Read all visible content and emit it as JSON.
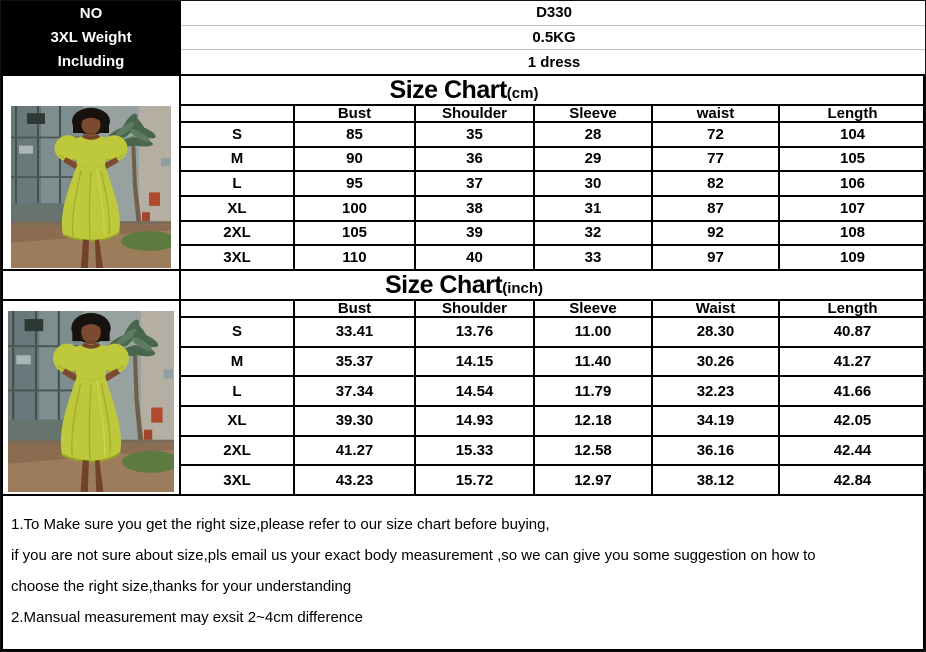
{
  "header_rows": [
    {
      "label": "NO",
      "value": "D330"
    },
    {
      "label": "3XL Weight",
      "value": "0.5KG"
    },
    {
      "label": "Including",
      "value": "1 dress"
    }
  ],
  "size_chart_cm": {
    "title": "Size Chart",
    "unit": "(cm)",
    "columns": [
      "",
      "Bust",
      "Shoulder",
      "Sleeve",
      "waist",
      "Length"
    ],
    "rows": [
      [
        "S",
        "85",
        "35",
        "28",
        "72",
        "104"
      ],
      [
        "M",
        "90",
        "36",
        "29",
        "77",
        "105"
      ],
      [
        "L",
        "95",
        "37",
        "30",
        "82",
        "106"
      ],
      [
        "XL",
        "100",
        "38",
        "31",
        "87",
        "107"
      ],
      [
        "2XL",
        "105",
        "39",
        "32",
        "92",
        "108"
      ],
      [
        "3XL",
        "110",
        "40",
        "33",
        "97",
        "109"
      ]
    ]
  },
  "size_chart_inch": {
    "title": "Size Chart",
    "unit": "(inch)",
    "columns": [
      "",
      "Bust",
      "Shoulder",
      "Sleeve",
      "Waist",
      "Length"
    ],
    "rows": [
      [
        "S",
        "33.41",
        "13.76",
        "11.00",
        "28.30",
        "40.87"
      ],
      [
        "M",
        "35.37",
        "14.15",
        "11.40",
        "30.26",
        "41.27"
      ],
      [
        "L",
        "37.34",
        "14.54",
        "11.79",
        "32.23",
        "41.66"
      ],
      [
        "XL",
        "39.30",
        "14.93",
        "12.18",
        "34.19",
        "42.05"
      ],
      [
        "2XL",
        "41.27",
        "15.33",
        "12.58",
        "36.16",
        "42.44"
      ],
      [
        "3XL",
        "43.23",
        "15.72",
        "12.97",
        "38.12",
        "42.84"
      ]
    ]
  },
  "notes": {
    "lines": [
      "1.To Make sure you get the right size,please refer to our size chart before buying,",
      "if you are not sure about size,pls email us your exact body measurement ,so we can give you some suggestion on how to",
      "choose the right size,thanks for your understanding",
      "2.Mansual measurement may exsit 2~4cm difference"
    ]
  },
  "colors": {
    "dress_green": "#bdc83b",
    "table_border": "#000000",
    "top_divider": "#c4c4c4"
  }
}
